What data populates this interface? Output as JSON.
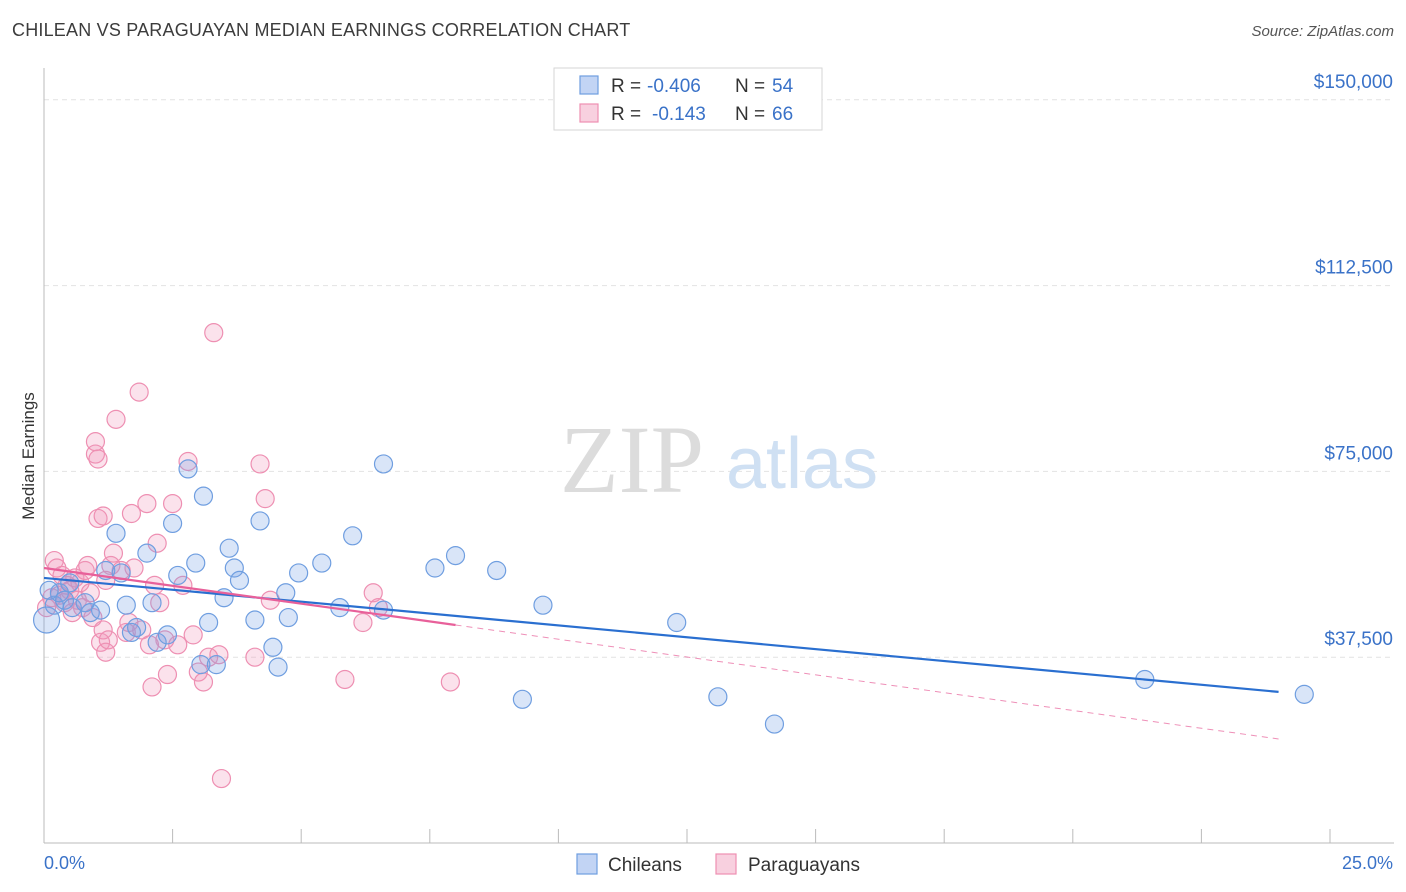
{
  "title": "CHILEAN VS PARAGUAYAN MEDIAN EARNINGS CORRELATION CHART",
  "source": "Source: ZipAtlas.com",
  "watermark": {
    "zip": "ZIP",
    "atlas": "atlas"
  },
  "legend": {
    "r_label": "R =",
    "n_label": "N =",
    "rows": [
      {
        "r": "-0.406",
        "n": "54"
      },
      {
        "r": "-0.143",
        "n": "66"
      }
    ]
  },
  "bottom_legend": [
    "Chileans",
    "Paraguayans"
  ],
  "colors": {
    "chileans_fill": "rgba(120,160,230,0.28)",
    "chileans_stroke": "#6f9ee0",
    "chileans_line": "#2a6fd0",
    "paraguayans_fill": "rgba(240,150,185,0.28)",
    "paraguayans_stroke": "#ee8fb2",
    "paraguayans_line": "#e8609a",
    "grid": "#e2e2e2",
    "axis_label": "#3a72c8"
  },
  "chart_data": {
    "type": "scatter",
    "title": "CHILEAN VS PARAGUAYAN MEDIAN EARNINGS CORRELATION CHART",
    "xlabel": "",
    "ylabel": "Median Earnings",
    "xlim": [
      0,
      25
    ],
    "ylim": [
      0,
      155000
    ],
    "x_tick_labels": [
      "0.0%",
      "25.0%"
    ],
    "y_ticks": [
      37500,
      75000,
      112500,
      150000
    ],
    "y_tick_labels": [
      "$37,500",
      "$75,000",
      "$112,500",
      "$150,000"
    ],
    "series": [
      {
        "name": "Chileans",
        "r": -0.406,
        "n": 54,
        "trend": {
          "x": [
            0,
            24.0
          ],
          "y": [
            53500,
            30500
          ],
          "style": "solid"
        },
        "points": [
          [
            0.05,
            45000
          ],
          [
            0.2,
            48000
          ],
          [
            0.3,
            50500
          ],
          [
            0.4,
            49000
          ],
          [
            0.5,
            52500
          ],
          [
            0.55,
            47500
          ],
          [
            0.8,
            48500
          ],
          [
            0.9,
            46500
          ],
          [
            1.1,
            47000
          ],
          [
            1.2,
            55000
          ],
          [
            1.4,
            62500
          ],
          [
            1.5,
            54500
          ],
          [
            1.6,
            48000
          ],
          [
            1.7,
            42500
          ],
          [
            1.8,
            43500
          ],
          [
            2.0,
            58500
          ],
          [
            2.1,
            48500
          ],
          [
            2.2,
            40500
          ],
          [
            2.4,
            42000
          ],
          [
            2.5,
            64500
          ],
          [
            2.6,
            54000
          ],
          [
            2.8,
            75500
          ],
          [
            2.95,
            56500
          ],
          [
            3.05,
            36000
          ],
          [
            3.1,
            70000
          ],
          [
            3.2,
            44500
          ],
          [
            3.35,
            36000
          ],
          [
            3.5,
            49500
          ],
          [
            3.6,
            59500
          ],
          [
            3.7,
            55500
          ],
          [
            3.8,
            53000
          ],
          [
            4.1,
            45000
          ],
          [
            4.2,
            65000
          ],
          [
            4.45,
            39500
          ],
          [
            4.55,
            35500
          ],
          [
            4.7,
            50500
          ],
          [
            4.75,
            45500
          ],
          [
            4.95,
            54500
          ],
          [
            5.4,
            56500
          ],
          [
            5.75,
            47500
          ],
          [
            6.0,
            62000
          ],
          [
            6.6,
            47000
          ],
          [
            6.6,
            76500
          ],
          [
            7.6,
            55500
          ],
          [
            8.0,
            58000
          ],
          [
            8.8,
            55000
          ],
          [
            9.3,
            29000
          ],
          [
            9.7,
            48000
          ],
          [
            12.3,
            44500
          ],
          [
            13.1,
            29500
          ],
          [
            14.2,
            24000
          ],
          [
            21.4,
            33000
          ],
          [
            24.5,
            30000
          ],
          [
            0.1,
            51000
          ]
        ]
      },
      {
        "name": "Paraguayans",
        "r": -0.143,
        "n": 66,
        "trend": {
          "x": [
            0,
            8.0,
            24.0
          ],
          "y": [
            55500,
            44000,
            21000
          ],
          "style": "solid-then-dashed"
        },
        "points": [
          [
            0.05,
            47500
          ],
          [
            0.15,
            49500
          ],
          [
            0.2,
            57000
          ],
          [
            0.25,
            55500
          ],
          [
            0.3,
            50000
          ],
          [
            0.35,
            54000
          ],
          [
            0.4,
            48500
          ],
          [
            0.45,
            52000
          ],
          [
            0.5,
            51000
          ],
          [
            0.55,
            46500
          ],
          [
            0.6,
            53500
          ],
          [
            0.65,
            49000
          ],
          [
            0.7,
            52500
          ],
          [
            0.75,
            47500
          ],
          [
            0.8,
            55000
          ],
          [
            0.85,
            56000
          ],
          [
            0.9,
            50500
          ],
          [
            0.95,
            45500
          ],
          [
            1.0,
            78500
          ],
          [
            1.05,
            65500
          ],
          [
            1.1,
            40500
          ],
          [
            1.15,
            43000
          ],
          [
            1.2,
            38500
          ],
          [
            1.25,
            41000
          ],
          [
            1.3,
            56000
          ],
          [
            1.35,
            58500
          ],
          [
            1.0,
            81000
          ],
          [
            1.05,
            77500
          ],
          [
            1.15,
            66000
          ],
          [
            1.2,
            53000
          ],
          [
            1.4,
            85500
          ],
          [
            1.5,
            55000
          ],
          [
            1.6,
            42500
          ],
          [
            1.65,
            44500
          ],
          [
            1.7,
            66500
          ],
          [
            1.75,
            55500
          ],
          [
            1.85,
            91000
          ],
          [
            1.9,
            43000
          ],
          [
            2.0,
            68500
          ],
          [
            2.1,
            31500
          ],
          [
            2.15,
            52000
          ],
          [
            2.2,
            60500
          ],
          [
            2.25,
            48500
          ],
          [
            2.35,
            41000
          ],
          [
            2.4,
            34000
          ],
          [
            2.5,
            68500
          ],
          [
            2.6,
            40000
          ],
          [
            2.7,
            52000
          ],
          [
            2.8,
            77000
          ],
          [
            2.9,
            42000
          ],
          [
            3.0,
            34500
          ],
          [
            3.1,
            32500
          ],
          [
            3.2,
            37500
          ],
          [
            3.3,
            103000
          ],
          [
            3.4,
            38000
          ],
          [
            3.45,
            13000
          ],
          [
            4.1,
            37500
          ],
          [
            4.2,
            76500
          ],
          [
            4.3,
            69500
          ],
          [
            4.4,
            49000
          ],
          [
            5.85,
            33000
          ],
          [
            6.2,
            44500
          ],
          [
            6.4,
            50500
          ],
          [
            6.5,
            47500
          ],
          [
            7.9,
            32500
          ],
          [
            2.05,
            40000
          ]
        ]
      }
    ]
  }
}
